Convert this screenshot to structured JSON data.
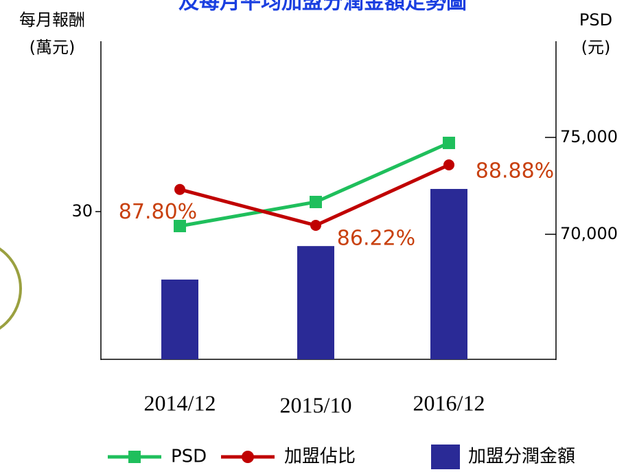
{
  "chart_data": {
    "type": "combo",
    "title": "及每月平均加盟分潤金額走勢圖",
    "ylabel": [
      "每月報酬",
      "(萬元)"
    ],
    "y2label": [
      "PSD",
      "(元)"
    ],
    "categories": [
      "2014/12",
      "2015/10",
      "2016/12"
    ],
    "ylim": [
      0,
      64.6
    ],
    "yticks": [
      30
    ],
    "y2lim": [
      63546,
      79965
    ],
    "y2ticks": [
      {
        "value": 70000,
        "label": "70,000"
      },
      {
        "value": 75000,
        "label": "75,000"
      }
    ],
    "series": [
      {
        "name": "PSD",
        "type": "line",
        "axis": "y2",
        "color": "#1fbf5c",
        "marker": "square",
        "values": [
          70426,
          71667,
          74716
        ]
      },
      {
        "name": "加盟佔比",
        "type": "line",
        "color": "#c00000",
        "marker": "circle",
        "values": [
          87.8,
          86.22,
          88.88
        ],
        "value_labels": [
          "87.80%",
          "86.22%",
          "88.88%"
        ],
        "label_color": "#c8400e"
      },
      {
        "name": "加盟分潤金額",
        "type": "bar",
        "axis": "y",
        "color": "#2a2a96",
        "values": [
          16.2,
          23.0,
          34.6
        ]
      }
    ]
  }
}
